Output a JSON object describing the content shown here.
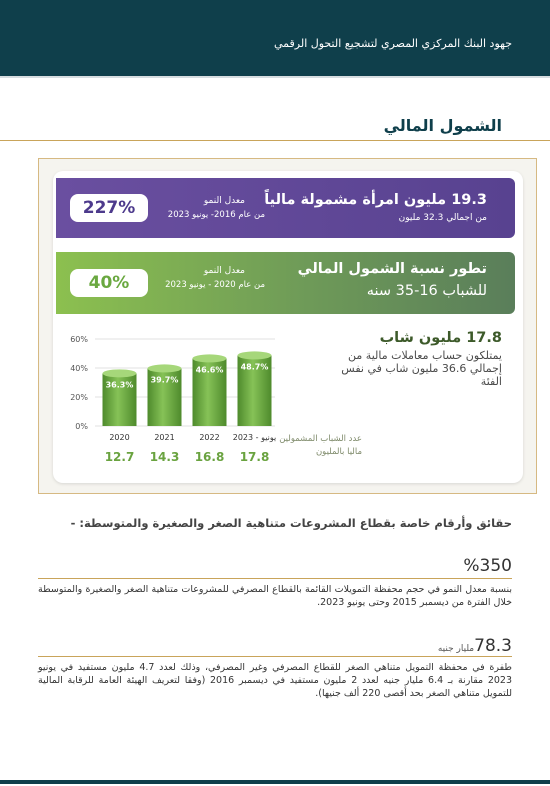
{
  "header": {
    "title": "جهود البنك المركزي المصري لتشجيع التحول الرقمي"
  },
  "section": {
    "title": "الشمول المالي"
  },
  "banner_women": {
    "title": "19.3 مليون امرأة مشمولة مالياً",
    "subtitle": "من اجمالي 32.3 مليون",
    "rate_label": "معدل النمو",
    "rate_period": "من عام 2016- يونيو 2023",
    "rate_value": "227%",
    "colors": {
      "primary": "#5f4898"
    }
  },
  "banner_youth": {
    "title_line1": "تطور نسبة الشمول المالي",
    "title_line2": "للشباب 16-35 سنه",
    "rate_label": "معدل النمو",
    "rate_period": "من عام 2020 - يونيو 2023",
    "rate_value": "40%",
    "colors": {
      "primary": "#7cae52"
    }
  },
  "youth_stat": {
    "headline": "17.8 مليون شاب",
    "description": "يمتلكون حساب معاملات مالية من إجمالي 36.6 مليون شاب في نفس الفئة"
  },
  "chart_data": {
    "type": "bar",
    "categories": [
      "2020",
      "2021",
      "2022",
      "2023 - يونيو"
    ],
    "values": [
      36.3,
      39.7,
      46.6,
      48.7
    ],
    "value_labels": [
      "36.3%",
      "39.7%",
      "46.6%",
      "48.7%"
    ],
    "y_ticks": [
      "0%",
      "20%",
      "40%",
      "60%"
    ],
    "ylim": [
      0,
      60
    ],
    "secondary_label": "عدد الشباب المشمولين ماليا بالمليون",
    "secondary_values": [
      "12.7",
      "14.3",
      "16.8",
      "17.8"
    ],
    "grid": true,
    "colors": {
      "bar": "#6aa340",
      "secondary_text": "#6aa340"
    }
  },
  "facts": {
    "title": "حقائق وأرقام خاصة بقطاع المشروعات متناهية الصغر والصغيرة والمتوسطة: -",
    "items": [
      {
        "number": "%350",
        "unit": "",
        "text": "بنسبة معدل النمو في حجم محفظة التمويلات القائمة بالقطاع المصرفي للمشروعات متناهية الصغر والصغيرة والمتوسطة خلال الفترة من ديسمبر 2015 وحتى يونيو 2023."
      },
      {
        "number": "78.3",
        "unit": "مليار جنيه",
        "text": "طفرة في محفظة التمويل متناهي الصغر للقطاع المصرفي وغير المصرفي، وذلك لعدد 4.7 مليون مستفيد في يونيو 2023 مقارنة بـ 6.4 مليار جنيه لعدد 2 مليون مستفيد في ديسمبر 2016 (وفقا لتعريف الهيئة العامة للرقابة المالية للتمويل متناهي الصغر بحد أقصى 220 ألف جنيها)."
      }
    ]
  }
}
